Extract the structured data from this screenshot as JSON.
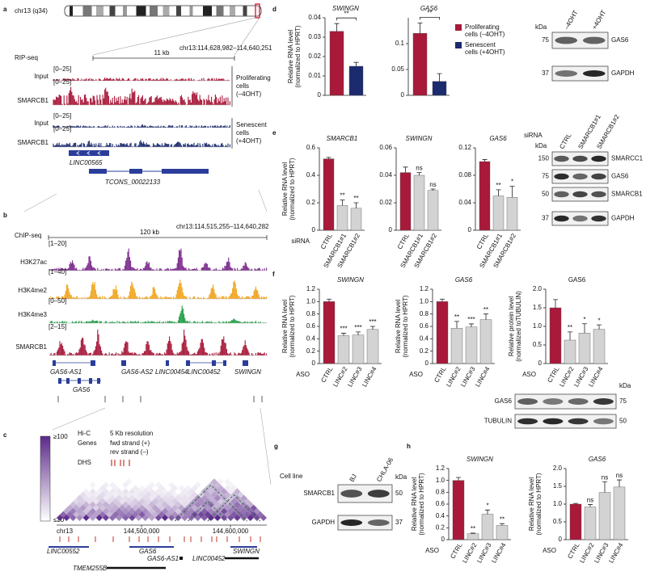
{
  "figure": {
    "a": {
      "letter": "a",
      "chromosome": "chr13 (q34)",
      "assay": "RIP-seq",
      "scale": "11 kb",
      "region": "chr13:114,628,982–114,640,251",
      "tracks": [
        {
          "name": "Input",
          "range": "[0–25]"
        },
        {
          "name": "SMARCB1",
          "range": "[0–25]"
        },
        {
          "name": "Input",
          "range": "[0–25]"
        },
        {
          "name": "SMARCB1",
          "range": "[0–25]"
        }
      ],
      "conditions": [
        [
          "Proliferating",
          "cells",
          "(–4OHT)"
        ],
        [
          "Senescent",
          "cells",
          "(+4OHT)"
        ]
      ],
      "genes": [
        "LINC00565",
        "TCONS_00022133"
      ]
    },
    "b": {
      "letter": "b",
      "assay": "ChIP-seq",
      "scale": "120 kb",
      "region": "chr13:114,515,255–114,640,282",
      "tracks": [
        {
          "name": "H3K27ac",
          "range": "[1–20]",
          "color": "#7b2a8c"
        },
        {
          "name": "H3K4me2",
          "range": "[1–40]",
          "color": "#f2a51f"
        },
        {
          "name": "H3K4me3",
          "range": "[0–50]",
          "color": "#1e9e45"
        },
        {
          "name": "SMARCB1",
          "range": "[2–15]",
          "color": "#a8193a"
        }
      ],
      "genes": [
        "GAS6-AS1",
        "GAS6-AS2",
        "LINC00454",
        "LINC00452",
        "SWINGN",
        "GAS6"
      ]
    },
    "c": {
      "letter": "c",
      "scale_max": "≥100",
      "scale_min": "≤20",
      "legend": {
        "hic": "Hi-C",
        "resolution": "5 Kb resolution",
        "genes": "Genes",
        "fwd": "fwd strand (+)",
        "rev": "rev strand (–)",
        "dhs": "DHS"
      },
      "chromosome": "chr13",
      "positions": [
        "144,500,000",
        "144,600,000"
      ],
      "genes": [
        "LINC00552",
        "GAS6",
        "SWINGN",
        "GAS6-AS1",
        "LINC00452",
        "TMEM255B"
      ]
    },
    "d": {
      "letter": "d",
      "legend": [
        {
          "label": [
            "Proliferating",
            "cells (–4OHT)"
          ],
          "color": "#a8193a"
        },
        {
          "label": [
            "Senescent",
            "cells (+4OHT)"
          ],
          "color": "#1c2a6e"
        }
      ],
      "blot": {
        "unit": "kDa",
        "lanes": [
          "–4OHT",
          "+4OHT"
        ],
        "bands": [
          {
            "name": "GAS6",
            "marker": 75
          },
          {
            "name": "GAPDH",
            "marker": 37
          }
        ]
      }
    },
    "e": {
      "letter": "e",
      "blot": {
        "lanes_label": "siRNA",
        "unit": "kDa",
        "lanes": [
          "CTRL",
          "SMARCB1#1",
          "SMARCB1#2"
        ],
        "bands": [
          {
            "name": "SMARCC1",
            "marker": 150
          },
          {
            "name": "GAS6",
            "marker": 75
          },
          {
            "name": "SMARCB1",
            "marker": 50
          },
          {
            "name": "GAPDH",
            "marker": 37
          }
        ]
      }
    },
    "f": {
      "letter": "f",
      "blot": {
        "unit": "kDa",
        "bands": [
          {
            "name": "GAS6",
            "marker": 75
          },
          {
            "name": "TUBULIN",
            "marker": 50
          }
        ]
      }
    },
    "g": {
      "letter": "g",
      "blot": {
        "lanes_label": "Cell line",
        "unit": "kDa",
        "lanes": [
          "BJ",
          "CHLA-06"
        ],
        "bands": [
          {
            "name": "SMARCB1",
            "marker": 50
          },
          {
            "name": "GAPDH",
            "marker": 37
          }
        ]
      }
    },
    "h": {
      "letter": "h"
    }
  },
  "chart_data": [
    {
      "type": "bar",
      "title": "SWINGN",
      "title_italic": true,
      "ylabel": [
        "Relative RNA level",
        "(normalized to HPRT)"
      ],
      "categories": [
        null,
        null
      ],
      "values": [
        0.033,
        0.015
      ],
      "errors": [
        0.004,
        0.002
      ],
      "colors": [
        "#a8193a",
        "#1c2a6e"
      ],
      "bracket": "**",
      "ylim": [
        0,
        0.04
      ],
      "yticks": [
        0,
        0.01,
        0.02,
        0.03,
        0.04
      ]
    },
    {
      "type": "bar",
      "title": "GAS6",
      "title_italic": true,
      "categories": [
        null,
        null
      ],
      "values": [
        0.12,
        0.027
      ],
      "errors": [
        0.02,
        0.015
      ],
      "colors": [
        "#a8193a",
        "#1c2a6e"
      ],
      "bracket": "**",
      "ylim": [
        0,
        0.15
      ],
      "yticks": [
        0,
        0.05,
        0.1
      ]
    },
    {
      "type": "bar",
      "title": "SMARCB1",
      "title_italic": true,
      "ylabel": [
        "Relative RNA level",
        "(normalized to HPRT)"
      ],
      "group_label": "siRNA",
      "categories": [
        "CTRL",
        "SMARCB1#1",
        "SMARCB1#2"
      ],
      "values": [
        0.52,
        0.18,
        0.16
      ],
      "errors": [
        0.01,
        0.04,
        0.04
      ],
      "colors": [
        "#a8193a",
        "#d3d3d3",
        "#d3d3d3"
      ],
      "significance": [
        null,
        "**",
        "**"
      ],
      "ylim": [
        0,
        0.6
      ],
      "yticks": [
        0,
        0.2,
        0.4,
        0.6
      ]
    },
    {
      "type": "bar",
      "title": "SWINGN",
      "title_italic": true,
      "categories": [
        "CTRL",
        "SMARCB1#1",
        "SMARCB1#2"
      ],
      "values": [
        0.042,
        0.04,
        0.029
      ],
      "errors": [
        0.004,
        0.002,
        0.001
      ],
      "colors": [
        "#a8193a",
        "#d3d3d3",
        "#d3d3d3"
      ],
      "significance": [
        null,
        "ns",
        "ns"
      ],
      "ylim": [
        0,
        0.06
      ],
      "yticks": [
        0,
        0.02,
        0.04,
        0.06
      ]
    },
    {
      "type": "bar",
      "title": "GAS6",
      "title_italic": true,
      "categories": [
        "CTRL",
        "SMARCB1#1",
        "SMARCB1#2"
      ],
      "values": [
        0.1,
        0.05,
        0.048
      ],
      "errors": [
        0.003,
        0.009,
        0.016
      ],
      "colors": [
        "#a8193a",
        "#d3d3d3",
        "#d3d3d3"
      ],
      "significance": [
        null,
        "**",
        "*"
      ],
      "ylim": [
        0,
        0.12
      ],
      "yticks": [
        0,
        0.04,
        0.08,
        0.12
      ]
    },
    {
      "type": "bar",
      "title": "SWINGN",
      "title_italic": true,
      "ylabel": [
        "Relative RNA level",
        "(normalized to HPRT)"
      ],
      "group_label": "ASO",
      "categories": [
        "CTRL",
        "LINC#2",
        "LINC#3",
        "LINC#4"
      ],
      "values": [
        1,
        0.45,
        0.46,
        0.55
      ],
      "errors": [
        0.04,
        0.04,
        0.05,
        0.05
      ],
      "colors": [
        "#a8193a",
        "#d3d3d3",
        "#d3d3d3",
        "#d3d3d3"
      ],
      "significance": [
        null,
        "***",
        "***",
        "***"
      ],
      "ylim": [
        0,
        1.2
      ],
      "yticks": [
        0,
        0.2,
        0.4,
        0.6,
        0.8,
        {
          "value": 1,
          "label": "1.0"
        },
        1.2
      ]
    },
    {
      "type": "bar",
      "title": "GAS6",
      "title_italic": true,
      "ylabel": [
        "Relative RNA level",
        "(normalized to HPRT)"
      ],
      "group_label": "ASO",
      "categories": [
        "CTRL",
        "LINC#2",
        "LINC#3",
        "LINC#4"
      ],
      "values": [
        1,
        0.57,
        0.59,
        0.71
      ],
      "errors": [
        0.04,
        0.11,
        0.05,
        0.09
      ],
      "colors": [
        "#a8193a",
        "#d3d3d3",
        "#d3d3d3",
        "#d3d3d3"
      ],
      "significance": [
        null,
        "**",
        "***",
        "**"
      ],
      "ylim": [
        0,
        1.2
      ],
      "yticks": [
        0,
        0.2,
        0.4,
        0.6,
        0.8,
        {
          "value": 1,
          "label": "1.0"
        },
        1.2
      ]
    },
    {
      "type": "bar",
      "title": "GAS6",
      "title_italic": false,
      "ylabel": [
        "Relative protein level",
        "(normalized toTUBULIN)"
      ],
      "group_label": "ASO",
      "categories": [
        "CTRL",
        "LINC#2",
        "LINC#3",
        "LINC#4"
      ],
      "values": [
        1.5,
        0.63,
        0.82,
        0.92
      ],
      "errors": [
        0.22,
        0.22,
        0.25,
        0.12
      ],
      "colors": [
        "#a8193a",
        "#d3d3d3",
        "#d3d3d3",
        "#d3d3d3"
      ],
      "significance": [
        null,
        "**",
        "*",
        "*"
      ],
      "ylim": [
        0,
        2
      ],
      "yticks": [
        0,
        0.5,
        {
          "value": 1,
          "label": "1.0"
        },
        1.5,
        {
          "value": 2,
          "label": "2.0"
        }
      ]
    },
    {
      "type": "bar",
      "title": "SWINGN",
      "title_italic": true,
      "ylabel": [
        "Relative RNA level",
        "(normalized to HPRT)"
      ],
      "group_label": "ASO",
      "categories": [
        "CTRL",
        "LINC#2",
        "LINC#3",
        "LINC#4"
      ],
      "values": [
        1,
        0.1,
        0.43,
        0.24
      ],
      "errors": [
        0.05,
        0.01,
        0.07,
        0.03
      ],
      "colors": [
        "#a8193a",
        "#d3d3d3",
        "#d3d3d3",
        "#d3d3d3"
      ],
      "significance": [
        null,
        "**",
        "*",
        "**"
      ],
      "ylim": [
        0,
        1.2
      ],
      "yticks": [
        0,
        0.2,
        0.4,
        0.6,
        0.8,
        {
          "value": 1,
          "label": "1.0"
        },
        1.2
      ]
    },
    {
      "type": "bar",
      "title": "GAS6",
      "title_italic": true,
      "ylabel": [
        "Relative RNA level",
        "(normalized to HPRT)"
      ],
      "group_label": "ASO",
      "categories": [
        "CTRL",
        "LINC#2",
        "LINC#3",
        "LINC#4"
      ],
      "values": [
        1,
        0.92,
        1.33,
        1.48
      ],
      "errors": [
        0.02,
        0.07,
        0.3,
        0.2
      ],
      "colors": [
        "#a8193a",
        "#d3d3d3",
        "#d3d3d3",
        "#d3d3d3"
      ],
      "significance": [
        null,
        "ns",
        "ns",
        "ns"
      ],
      "ylim": [
        0,
        2
      ],
      "yticks": [
        0,
        0.5,
        {
          "value": 1,
          "label": "1.0"
        },
        1.5,
        {
          "value": 2,
          "label": "2.0"
        }
      ]
    }
  ]
}
